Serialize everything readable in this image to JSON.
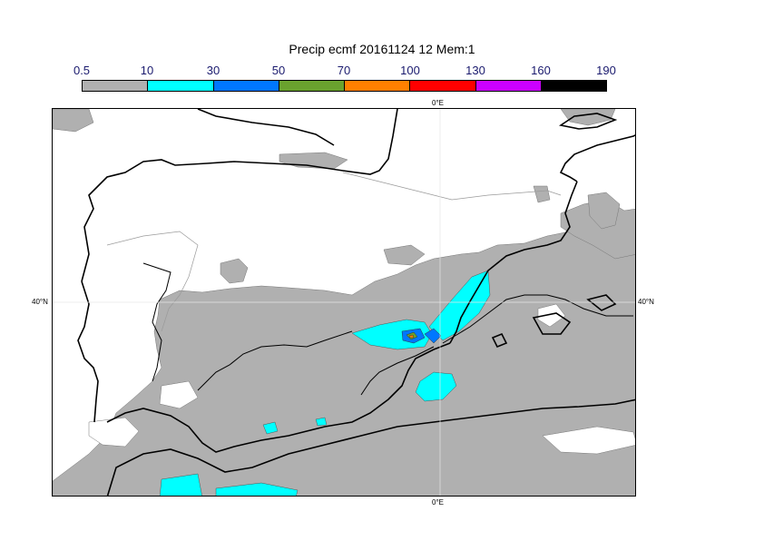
{
  "title": "Precip ecmf 20161124 12 Mem:1",
  "colorbar": {
    "labels": [
      "0.5",
      "10",
      "30",
      "50",
      "70",
      "100",
      "130",
      "160",
      "190"
    ],
    "colors": [
      "#b0b0b0",
      "#00ffff",
      "#0077ff",
      "#6aa22e",
      "#ff8000",
      "#ff0000",
      "#cc00ff",
      "#000000"
    ]
  },
  "axes": {
    "top_lon": "0°E",
    "bottom_lon": "0°E",
    "left_lat": "40°N",
    "right_lat": "40°N"
  }
}
